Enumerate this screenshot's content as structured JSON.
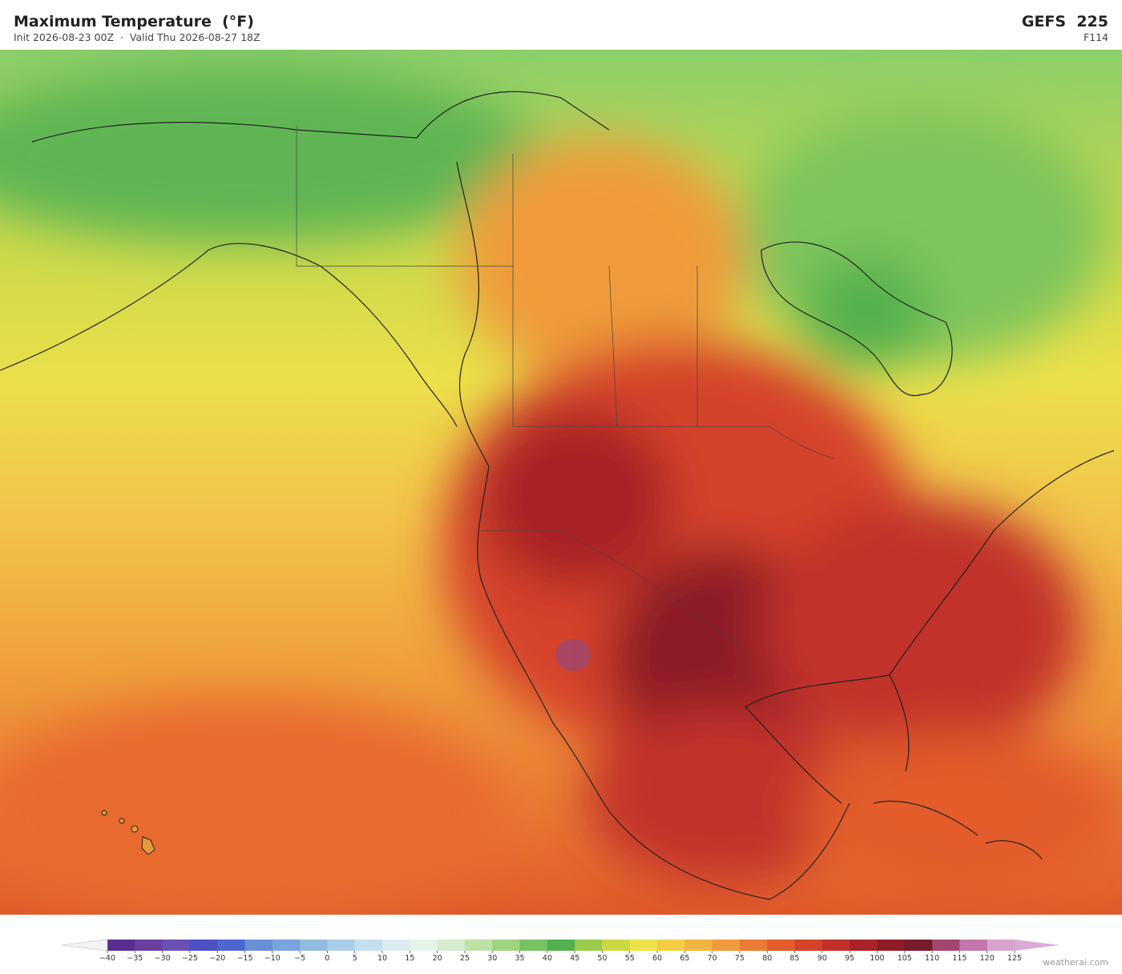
{
  "header": {
    "title": "Maximum Temperature  (°F)",
    "subtitle": "Init 2026-08-23 00Z  ·  Valid Thu 2026-08-27 18Z",
    "model": "GEFS  225",
    "forecast_hour": "F114"
  },
  "colorbar": {
    "ticks": [
      {
        "value": -40,
        "label": "−40"
      },
      {
        "value": -35,
        "label": "−35"
      },
      {
        "value": -30,
        "label": "−30"
      },
      {
        "value": -25,
        "label": "−25"
      },
      {
        "value": -20,
        "label": "−20"
      },
      {
        "value": -15,
        "label": "−15"
      },
      {
        "value": -10,
        "label": "−10"
      },
      {
        "value": -5,
        "label": "−5"
      },
      0,
      5,
      10,
      15,
      20,
      25,
      30,
      35,
      40,
      45,
      50,
      55,
      60,
      65,
      70,
      75,
      80,
      85,
      90,
      95,
      100,
      105,
      110,
      115,
      120,
      125
    ],
    "colors": [
      "#5b2d91",
      "#6b3fa0",
      "#6a51b5",
      "#4f4fc7",
      "#4d66d1",
      "#6a8fd6",
      "#7aa4dd",
      "#93badf",
      "#a9cfe9",
      "#c2e0ee",
      "#daecf1",
      "#e6f3ea",
      "#d6ecd0",
      "#bde2a6",
      "#9ed47e",
      "#77c262",
      "#52b04e",
      "#9acb4b",
      "#cbd843",
      "#ede247",
      "#f4cd45",
      "#f2b441",
      "#ef9b3b",
      "#ea7d33",
      "#e35c2b",
      "#d5432a",
      "#c2302a",
      "#a92428",
      "#8c1c26",
      "#761b2b",
      "#a1476d",
      "#c276ab",
      "#d7a3cf"
    ],
    "under_color": "#f4f4f4",
    "over_color": "#dcaad8"
  },
  "watermark": "weatherai.com"
}
